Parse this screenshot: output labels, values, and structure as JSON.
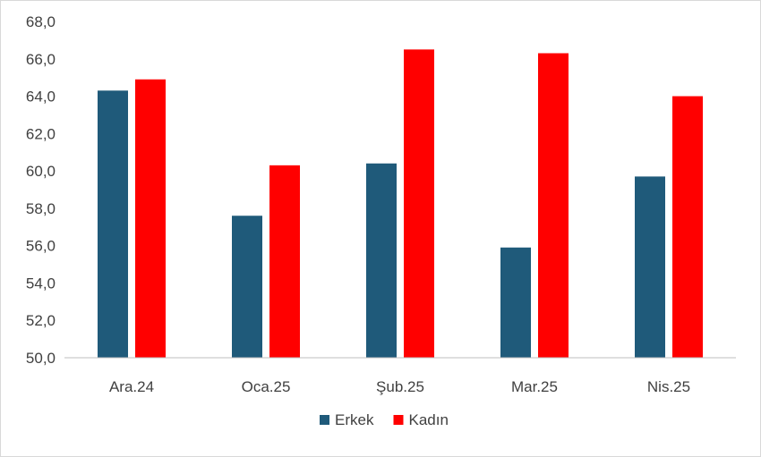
{
  "chart_data": {
    "type": "bar",
    "categories": [
      "Ara.24",
      "Oca.25",
      "Şub.25",
      "Mar.25",
      "Nis.25"
    ],
    "series": [
      {
        "name": "Erkek",
        "values": [
          64.3,
          57.6,
          60.4,
          55.9,
          59.7
        ],
        "color": "#1f5a7a"
      },
      {
        "name": "Kadın",
        "values": [
          64.9,
          60.3,
          66.5,
          66.3,
          64.0
        ],
        "color": "#ff0000"
      }
    ],
    "ylim": [
      50,
      68
    ],
    "yticks": [
      50,
      52,
      54,
      56,
      58,
      60,
      62,
      64,
      66,
      68
    ],
    "ytick_labels": [
      "50,0",
      "52,0",
      "54,0",
      "56,0",
      "58,0",
      "60,0",
      "62,0",
      "64,0",
      "66,0",
      "68,0"
    ],
    "grid": false,
    "legend": "bottom",
    "title": "",
    "xlabel": "",
    "ylabel": ""
  }
}
